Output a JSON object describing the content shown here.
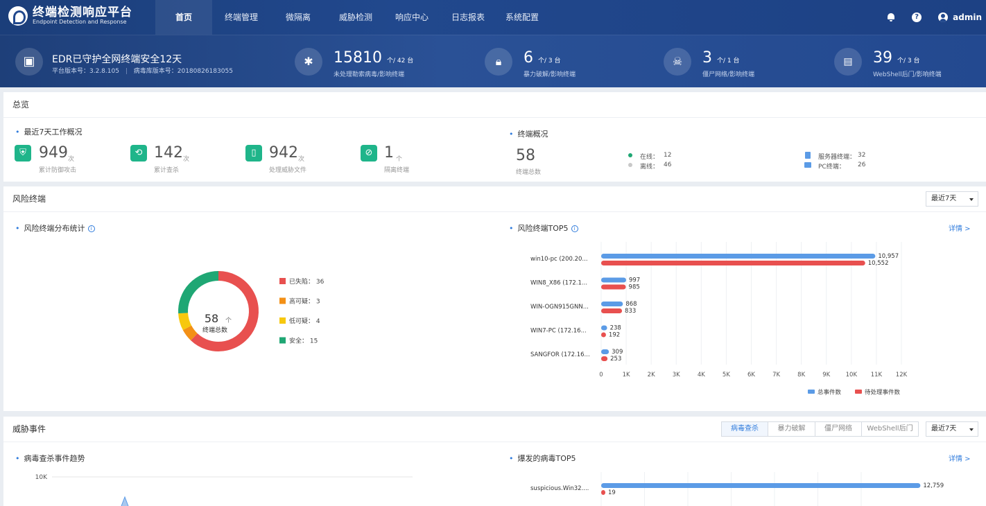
{
  "nav": {
    "logo_title": "终端检测响应平台",
    "logo_sub": "Endpoint Detection and Response",
    "items": [
      "首页",
      "终端管理",
      "微隔离",
      "威胁检测",
      "响应中心",
      "日志报表",
      "系统配置"
    ],
    "help_icon_glyph": "?",
    "user": "admin"
  },
  "banner": {
    "title": "EDR已守护全网终端安全12天",
    "platform_version": "平台版本号：3.2.8.105",
    "virus_db_version": "病毒库版本号：20180826183055",
    "stats": [
      {
        "num": "15810",
        "unit": "个/ 42 台",
        "label": "未处理勒索病毒/影响终端",
        "icon": "bug-icon"
      },
      {
        "num": "6",
        "unit": "个/ 3 台",
        "label": "暴力破解/影响终端",
        "icon": "lock-icon"
      },
      {
        "num": "3",
        "unit": "个/ 1 台",
        "label": "僵尸网络/影响终端",
        "icon": "skull-icon"
      },
      {
        "num": "39",
        "unit": "个/ 3 台",
        "label": "WebShell后门/影响终端",
        "icon": "terminal-icon"
      }
    ]
  },
  "overview": {
    "title": "总览",
    "week_title": "最近7天工作概况",
    "kpis": [
      {
        "num": "949",
        "unit": "次",
        "label": "累计防御攻击"
      },
      {
        "num": "142",
        "unit": "次",
        "label": "累计查杀"
      },
      {
        "num": "942",
        "unit": "次",
        "label": "处理威胁文件"
      },
      {
        "num": "1",
        "unit": "个",
        "label": "隔离终端"
      }
    ],
    "terminal_title": "终端概况",
    "total_num": "58",
    "total_label": "终端总数",
    "online_label": "在线：",
    "online_value": "12",
    "offline_label": "离线：",
    "offline_value": "46",
    "server_label": "服务器终端：",
    "server_value": "32",
    "pc_label": "PC终端：",
    "pc_value": "26"
  },
  "risk": {
    "title": "风险终端",
    "range": "最近7天",
    "dist_title": "风险终端分布统计",
    "top5_title": "风险终端TOP5",
    "detail": "详情 >"
  },
  "threat": {
    "title": "威胁事件",
    "tabs": [
      "病毒查杀",
      "暴力破解",
      "僵尸网络",
      "WebShell后门"
    ],
    "range": "最近7天",
    "trend_title": "病毒查杀事件趋势",
    "top5_title": "爆发的病毒TOP5",
    "detail": "详情 >"
  },
  "colors": {
    "blue": "#5b9be6",
    "red": "#e8504f",
    "orange": "#f39016",
    "yellow": "#f7c80e",
    "green": "#1fa774"
  },
  "chart_data": [
    {
      "type": "pie",
      "center_value": "58",
      "center_unit": "个",
      "center_label": "终端总数",
      "categories": [
        "已失陷",
        "高可疑",
        "低可疑",
        "安全"
      ],
      "values": [
        36,
        3,
        4,
        15
      ],
      "legend_labels": [
        "已失陷： 36",
        "高可疑： 3",
        "低可疑： 4",
        "安全： 15"
      ],
      "colors": [
        "#e8504f",
        "#f39016",
        "#f7c80e",
        "#1fa774"
      ]
    },
    {
      "type": "bar",
      "orientation": "horizontal",
      "categories": [
        "win10-pc (200.20...",
        "WIN8_X86 (172.1...",
        "WIN-OGN915GNN...",
        "WIN7-PC (172.16...",
        "SANGFOR (172.16..."
      ],
      "series": [
        {
          "name": "总事件数",
          "values": [
            10957,
            997,
            868,
            238,
            309
          ],
          "labels": [
            "10,957",
            "997",
            "868",
            "238",
            "309"
          ],
          "color": "#5b9be6"
        },
        {
          "name": "待处理事件数",
          "values": [
            10552,
            985,
            833,
            192,
            253
          ],
          "labels": [
            "10,552",
            "985",
            "833",
            "192",
            "253"
          ],
          "color": "#e8504f"
        }
      ],
      "xlim": [
        0,
        12000
      ],
      "xticks": [
        "0",
        "1K",
        "2K",
        "3K",
        "4K",
        "5K",
        "6K",
        "7K",
        "8K",
        "9K",
        "10K",
        "11K",
        "12K"
      ],
      "legend": "bottom-right"
    },
    {
      "type": "line",
      "y_tick_visible": "10K"
    },
    {
      "type": "bar",
      "orientation": "horizontal",
      "categories": [
        "suspicious.Win32...."
      ],
      "series": [
        {
          "values": [
            12759
          ],
          "labels": [
            "12,759"
          ],
          "color": "#5b9be6"
        },
        {
          "values": [
            19
          ],
          "labels": [
            "19"
          ],
          "color": "#e8504f"
        }
      ]
    }
  ]
}
